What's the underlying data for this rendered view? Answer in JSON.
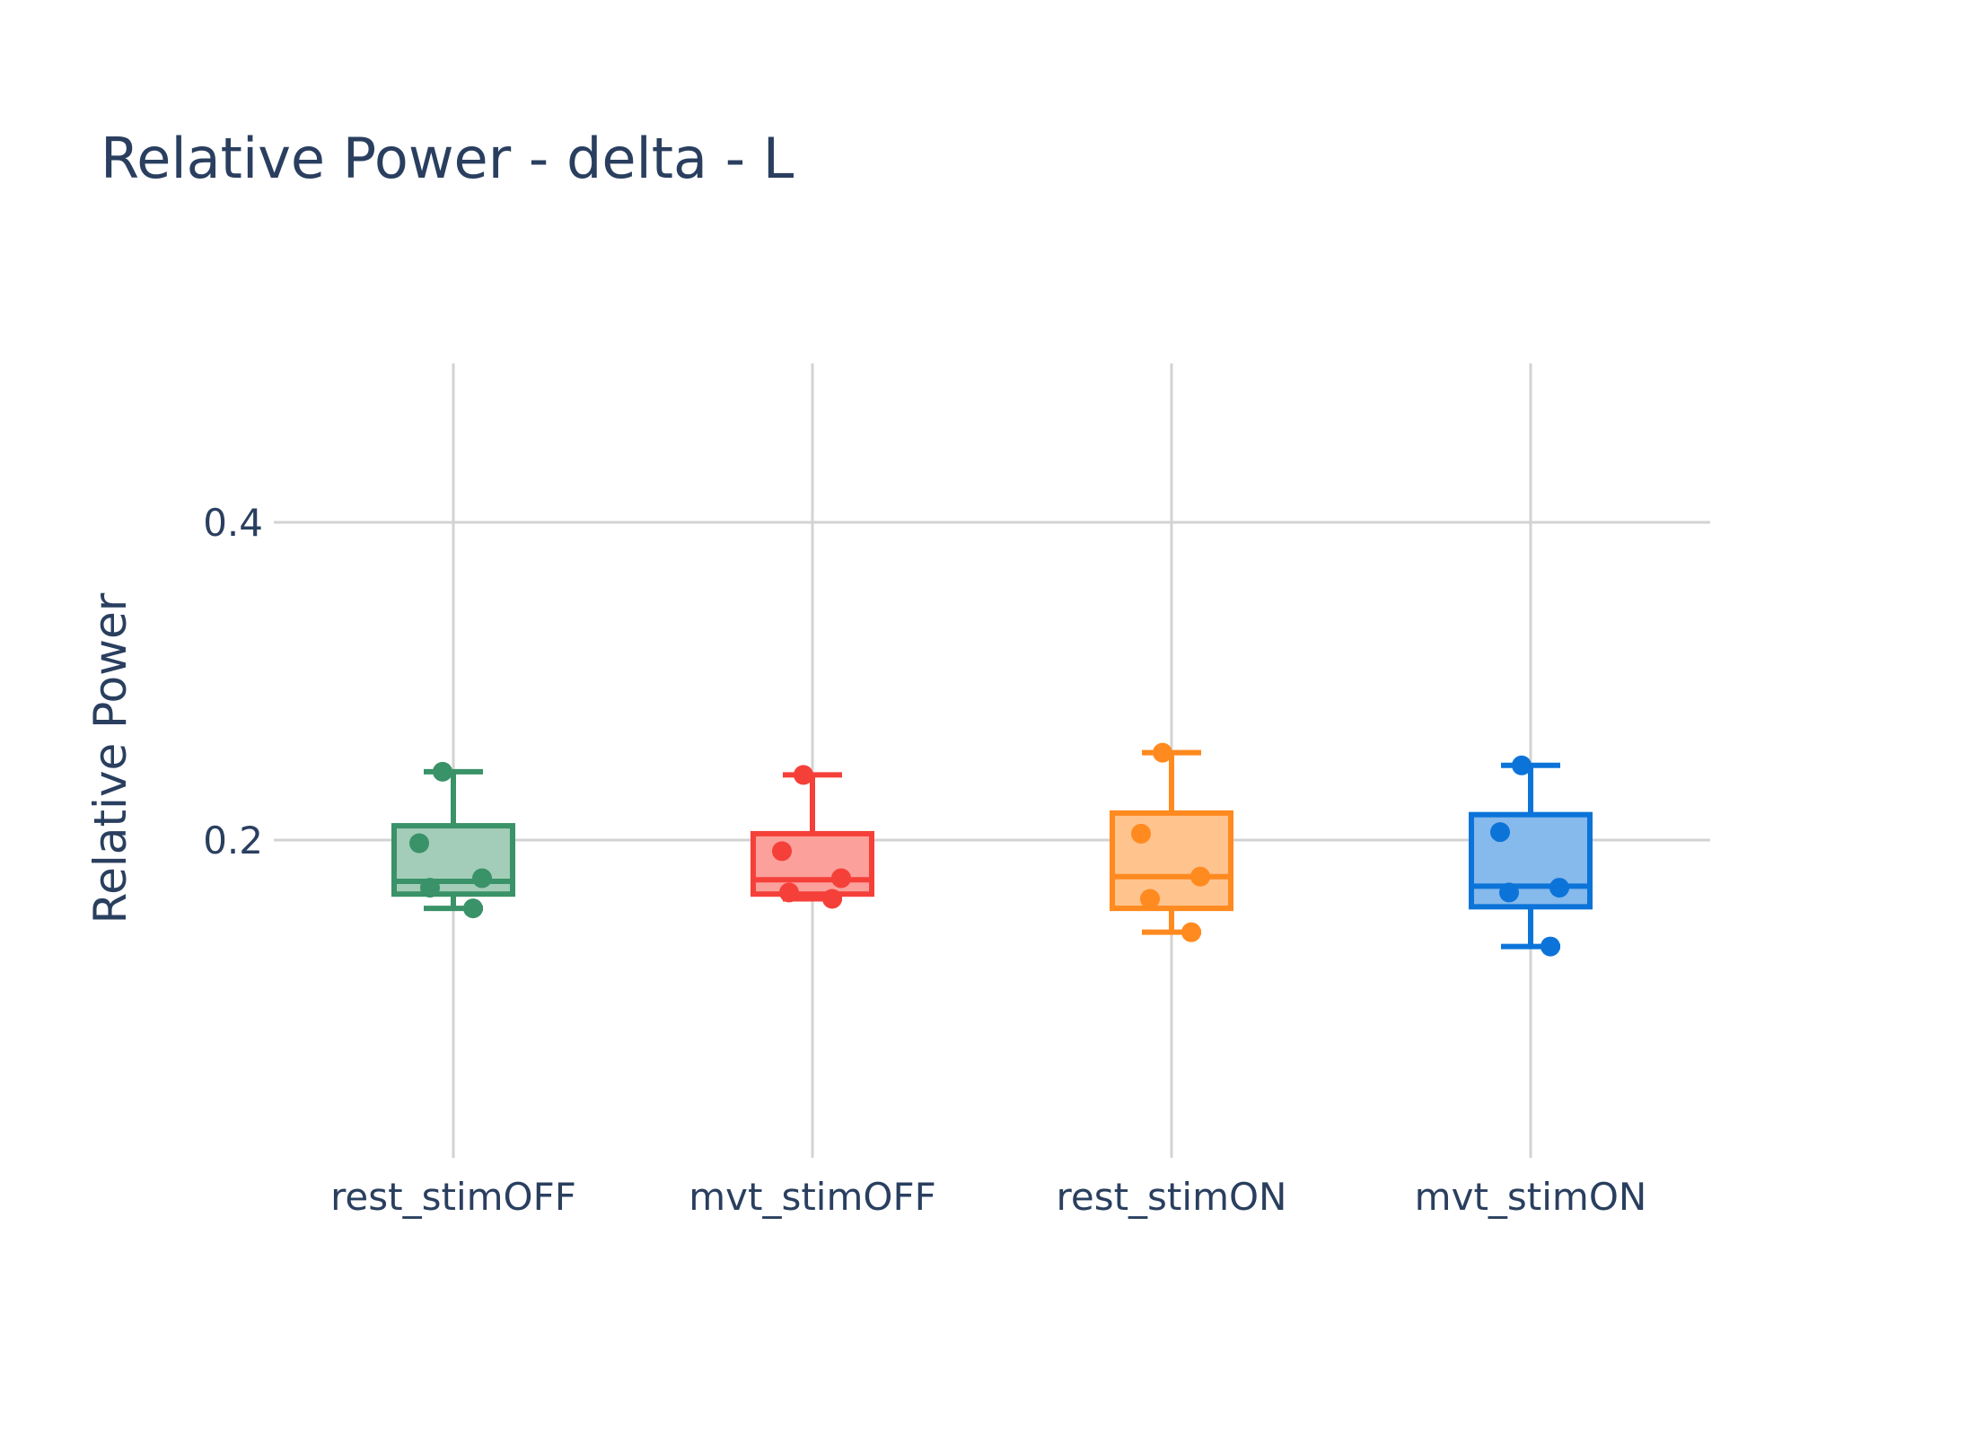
{
  "chart_data": {
    "type": "box",
    "title": "Relative Power - delta - L",
    "ylabel": "Relative Power",
    "xlabel": "",
    "ylim": [
      0,
      0.5
    ],
    "yticks": [
      0.2,
      0.4
    ],
    "ytick_labels": [
      "0.2",
      "0.4"
    ],
    "grid": true,
    "categories": [
      "rest_stimOFF",
      "mvt_stimOFF",
      "rest_stimON",
      "mvt_stimON"
    ],
    "series": [
      {
        "category": "rest_stimOFF",
        "color": "#3a9268",
        "fill": "#a3cdb8",
        "min": 0.157,
        "q1": 0.166,
        "median": 0.174,
        "q3": 0.209,
        "max": 0.243,
        "points": [
          0.243,
          0.198,
          0.17,
          0.176,
          0.157
        ],
        "jitter": [
          -0.06,
          -0.19,
          -0.13,
          0.16,
          0.11
        ]
      },
      {
        "category": "mvt_stimOFF",
        "color": "#f5403a",
        "fill": "#fca09c",
        "min": 0.163,
        "q1": 0.166,
        "median": 0.175,
        "q3": 0.204,
        "max": 0.241,
        "points": [
          0.241,
          0.193,
          0.167,
          0.176,
          0.163
        ],
        "jitter": [
          -0.05,
          -0.17,
          -0.13,
          0.16,
          0.11
        ]
      },
      {
        "category": "rest_stimON",
        "color": "#ff8a1f",
        "fill": "#ffc38e",
        "min": 0.142,
        "q1": 0.157,
        "median": 0.177,
        "q3": 0.217,
        "max": 0.255,
        "points": [
          0.255,
          0.204,
          0.163,
          0.177,
          0.142
        ],
        "jitter": [
          -0.05,
          -0.17,
          -0.12,
          0.16,
          0.11
        ]
      },
      {
        "category": "mvt_stimON",
        "color": "#0c74d9",
        "fill": "#86b9ec",
        "min": 0.133,
        "q1": 0.158,
        "median": 0.171,
        "q3": 0.216,
        "max": 0.247,
        "points": [
          0.247,
          0.205,
          0.167,
          0.17,
          0.133
        ],
        "jitter": [
          -0.05,
          -0.17,
          -0.12,
          0.16,
          0.11
        ]
      }
    ]
  }
}
